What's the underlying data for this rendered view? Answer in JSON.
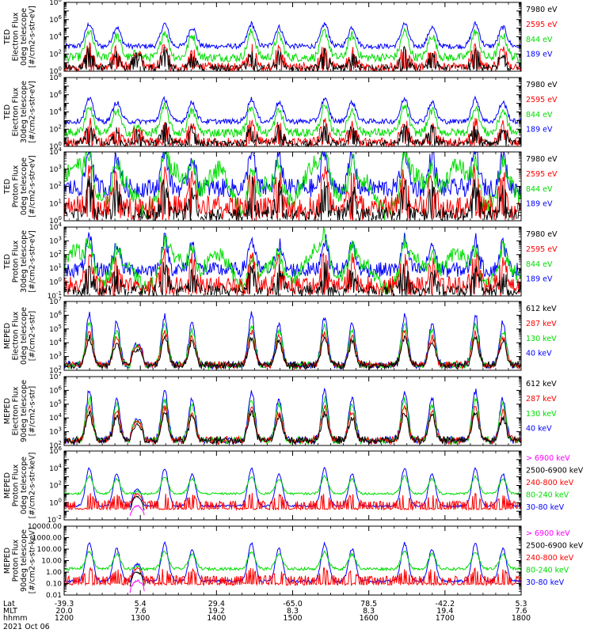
{
  "chart_data": {
    "type": "line",
    "date_label": "2021 Oct 06",
    "x_axis": {
      "rows": [
        {
          "name": "Lat",
          "values": [
            "-39.3",
            "5.4",
            "29.4",
            "-65.0",
            "78.5",
            "-42.2",
            "5.3"
          ]
        },
        {
          "name": "MLT",
          "values": [
            "20.0",
            "7.6",
            "19.2",
            "8.3",
            "8.3",
            "19.4",
            "7.6"
          ]
        },
        {
          "name": "hhmm",
          "values": [
            "1200",
            "1300",
            "1400",
            "1500",
            "1600",
            "1700",
            "1800"
          ]
        }
      ],
      "range_hhmm": [
        "1200",
        "1800"
      ],
      "major_ticks": 7,
      "minor_per_major": 6
    },
    "panels": [
      {
        "id": "ted-e-0",
        "ylabel_lines": [
          "TED",
          "Electron Flux",
          "0deg telescope",
          "[#/cm2-s-str-eV]"
        ],
        "y_log_range": [
          0,
          8
        ],
        "y_tick_labels": [
          {
            "exp": 0,
            "label": "10^0"
          },
          {
            "exp": 2,
            "label": "10^2"
          },
          {
            "exp": 4,
            "label": "10^4"
          },
          {
            "exp": 6,
            "label": "10^6"
          },
          {
            "exp": 8,
            "label": "10^8"
          }
        ],
        "legend": [
          {
            "label": "7980 eV",
            "color": "#000000"
          },
          {
            "label": "2595 eV",
            "color": "#ff0000"
          },
          {
            "label": "844 eV",
            "color": "#00dd00"
          },
          {
            "label": "189 eV",
            "color": "#0000ff"
          }
        ]
      },
      {
        "id": "ted-e-30",
        "ylabel_lines": [
          "TED",
          "Electron Flux",
          "30deg telescope",
          "[#/cm2-s-str-eV]"
        ],
        "y_log_range": [
          0,
          8
        ],
        "y_tick_labels": [
          {
            "exp": 0,
            "label": "10^0"
          },
          {
            "exp": 2,
            "label": "10^2"
          },
          {
            "exp": 4,
            "label": "10^4"
          },
          {
            "exp": 6,
            "label": "10^6"
          },
          {
            "exp": 8,
            "label": "10^8"
          }
        ],
        "legend": [
          {
            "label": "7980 eV",
            "color": "#000000"
          },
          {
            "label": "2595 eV",
            "color": "#ff0000"
          },
          {
            "label": "844 eV",
            "color": "#00dd00"
          },
          {
            "label": "189 eV",
            "color": "#0000ff"
          }
        ]
      },
      {
        "id": "ted-p-0",
        "ylabel_lines": [
          "TED",
          "Proton Flux",
          "0deg telescope",
          "[#/cm2-s-str-eV]"
        ],
        "y_log_range": [
          0,
          4
        ],
        "y_tick_labels": [
          {
            "exp": 0,
            "label": "10^0"
          },
          {
            "exp": 1,
            "label": "10^1"
          },
          {
            "exp": 2,
            "label": "10^2"
          },
          {
            "exp": 3,
            "label": "10^3"
          },
          {
            "exp": 4,
            "label": "10^4"
          }
        ],
        "legend": [
          {
            "label": "7980 eV",
            "color": "#000000"
          },
          {
            "label": "2595 eV",
            "color": "#ff0000"
          },
          {
            "label": "844 eV",
            "color": "#00dd00"
          },
          {
            "label": "189 eV",
            "color": "#0000ff"
          }
        ]
      },
      {
        "id": "ted-p-30",
        "ylabel_lines": [
          "TED",
          "Proton Flux",
          "30deg telescope",
          "[#/cm2-s-str-eV]"
        ],
        "y_log_range": [
          -1,
          4
        ],
        "y_tick_labels": [
          {
            "exp": -1,
            "label": "10^-1"
          },
          {
            "exp": 0,
            "label": "10^0"
          },
          {
            "exp": 1,
            "label": "10^1"
          },
          {
            "exp": 2,
            "label": "10^2"
          },
          {
            "exp": 3,
            "label": "10^3"
          },
          {
            "exp": 4,
            "label": "10^4"
          }
        ],
        "legend": [
          {
            "label": "7980 eV",
            "color": "#000000"
          },
          {
            "label": "2595 eV",
            "color": "#ff0000"
          },
          {
            "label": "844 eV",
            "color": "#00dd00"
          },
          {
            "label": "189 eV",
            "color": "#0000ff"
          }
        ]
      },
      {
        "id": "meped-e-0",
        "ylabel_lines": [
          "MEPED",
          "Electron Flux",
          "0deg telescope",
          "[#/cm2-s-str]"
        ],
        "y_log_range": [
          2,
          7
        ],
        "y_tick_labels": [
          {
            "exp": 2,
            "label": "10^2"
          },
          {
            "exp": 3,
            "label": "10^3"
          },
          {
            "exp": 4,
            "label": "10^4"
          },
          {
            "exp": 5,
            "label": "10^5"
          },
          {
            "exp": 6,
            "label": "10^6"
          },
          {
            "exp": 7,
            "label": "10^7"
          }
        ],
        "legend": [
          {
            "label": "612 keV",
            "color": "#000000"
          },
          {
            "label": "287 keV",
            "color": "#ff0000"
          },
          {
            "label": "130 keV",
            "color": "#00dd00"
          },
          {
            "label": "40 keV",
            "color": "#0000ff"
          }
        ]
      },
      {
        "id": "meped-e-90",
        "ylabel_lines": [
          "MEPED",
          "Electron Flux",
          "90deg telescope",
          "[#/cm2-s-str]"
        ],
        "y_log_range": [
          2,
          7
        ],
        "y_tick_labels": [
          {
            "exp": 2,
            "label": "10^2"
          },
          {
            "exp": 3,
            "label": "10^3"
          },
          {
            "exp": 4,
            "label": "10^4"
          },
          {
            "exp": 5,
            "label": "10^5"
          },
          {
            "exp": 6,
            "label": "10^6"
          },
          {
            "exp": 7,
            "label": "10^7"
          }
        ],
        "legend": [
          {
            "label": "612 keV",
            "color": "#000000"
          },
          {
            "label": "287 keV",
            "color": "#ff0000"
          },
          {
            "label": "130 keV",
            "color": "#00dd00"
          },
          {
            "label": "40 keV",
            "color": "#0000ff"
          }
        ]
      },
      {
        "id": "meped-p-0",
        "ylabel_lines": [
          "MEPED",
          "Proton Flux",
          "0deg telescope",
          "[#/cm2-s-str-keV]"
        ],
        "y_log_range": [
          -2,
          6
        ],
        "y_tick_labels": [
          {
            "exp": -2,
            "label": "10^-2"
          },
          {
            "exp": 0,
            "label": "10^0"
          },
          {
            "exp": 2,
            "label": "10^2"
          },
          {
            "exp": 4,
            "label": "10^4"
          },
          {
            "exp": 6,
            "label": "10^6"
          }
        ],
        "legend": [
          {
            "label": "> 6900 keV",
            "color": "#ff00ff"
          },
          {
            "label": "2500-6900 keV",
            "color": "#000000"
          },
          {
            "label": "240-800 keV",
            "color": "#ff0000"
          },
          {
            "label": "80-240 keV",
            "color": "#00dd00"
          },
          {
            "label": "30-80 keV",
            "color": "#0000ff"
          }
        ]
      },
      {
        "id": "meped-p-90",
        "ylabel_lines": [
          "MEPED",
          "Proton Flux",
          "90deg telescope",
          "[#/cm2-s-str-keV]"
        ],
        "y_log_range": [
          -2,
          4
        ],
        "y_tick_labels": [
          {
            "exp": -2,
            "label": "0.01"
          },
          {
            "exp": -1,
            "label": "0.10"
          },
          {
            "exp": 0,
            "label": "1.00"
          },
          {
            "exp": 1,
            "label": "10.00"
          },
          {
            "exp": 2,
            "label": "100.00"
          },
          {
            "exp": 3,
            "label": "1000.00"
          },
          {
            "exp": 4,
            "label": "10000.00"
          }
        ],
        "legend": [
          {
            "label": "> 6900 keV",
            "color": "#ff00ff"
          },
          {
            "label": "2500-6900 keV",
            "color": "#000000"
          },
          {
            "label": "240-800 keV",
            "color": "#ff0000"
          },
          {
            "label": "80-240 keV",
            "color": "#00dd00"
          },
          {
            "label": "30-80 keV",
            "color": "#0000ff"
          }
        ]
      }
    ]
  }
}
